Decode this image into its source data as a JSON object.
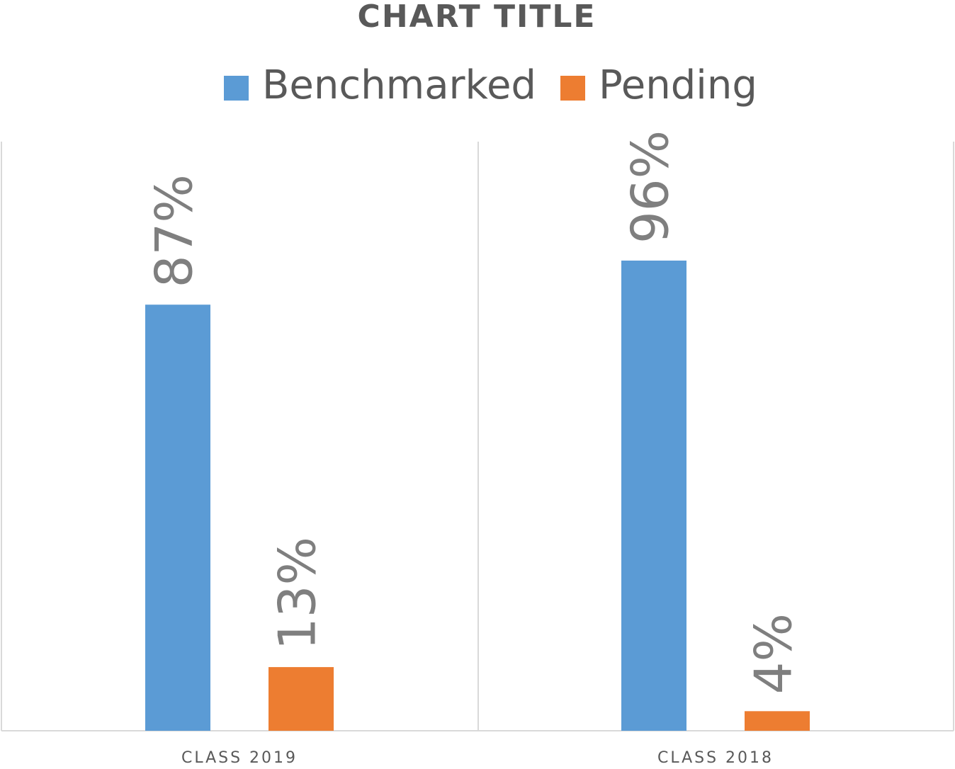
{
  "chart_data": {
    "type": "bar",
    "title": "CHART TITLE",
    "categories": [
      "CLASS 2019",
      "CLASS 2018"
    ],
    "series": [
      {
        "name": "Benchmarked",
        "color": "#5b9bd5",
        "values": [
          87,
          96
        ],
        "value_labels": [
          "87%",
          "96%"
        ]
      },
      {
        "name": "Pending",
        "color": "#ed7d31",
        "values": [
          13,
          4
        ],
        "value_labels": [
          "13%",
          "4%"
        ]
      }
    ],
    "ylim": [
      0,
      120
    ]
  }
}
